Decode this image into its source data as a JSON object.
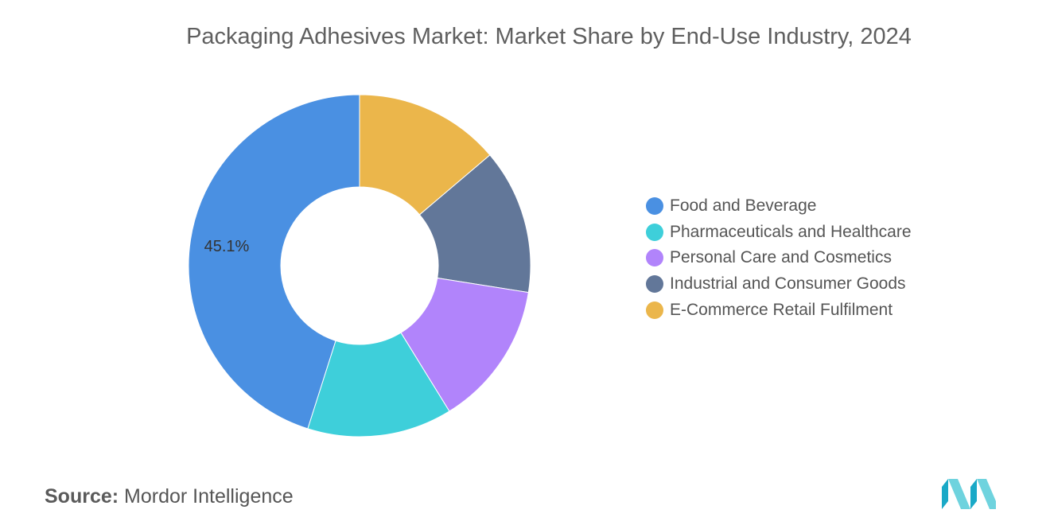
{
  "chart_data": {
    "type": "pie",
    "donut": true,
    "title": "Packaging Adhesives Market: Market Share by End-Use Industry, 2024",
    "categories": [
      "Food and Beverage",
      "Pharmaceuticals and Healthcare",
      "Personal Care and Cosmetics",
      "Industrial and Consumer Goods",
      "E-Commerce Retail Fulfilment"
    ],
    "values": [
      45.1,
      13.7,
      13.7,
      13.7,
      13.8
    ],
    "colors": [
      "#4a90e2",
      "#3ecfda",
      "#b184fb",
      "#627799",
      "#ebb64b"
    ],
    "data_labels": [
      "45.1%",
      "",
      "",
      "",
      ""
    ],
    "legend_position": "right"
  },
  "footer": {
    "source_label": "Source:",
    "source_value": "Mordor Intelligence"
  },
  "logo": {
    "icon": "mordor-intelligence-logo-icon",
    "colors": [
      "#1aa9c7",
      "#6fd3de"
    ]
  }
}
